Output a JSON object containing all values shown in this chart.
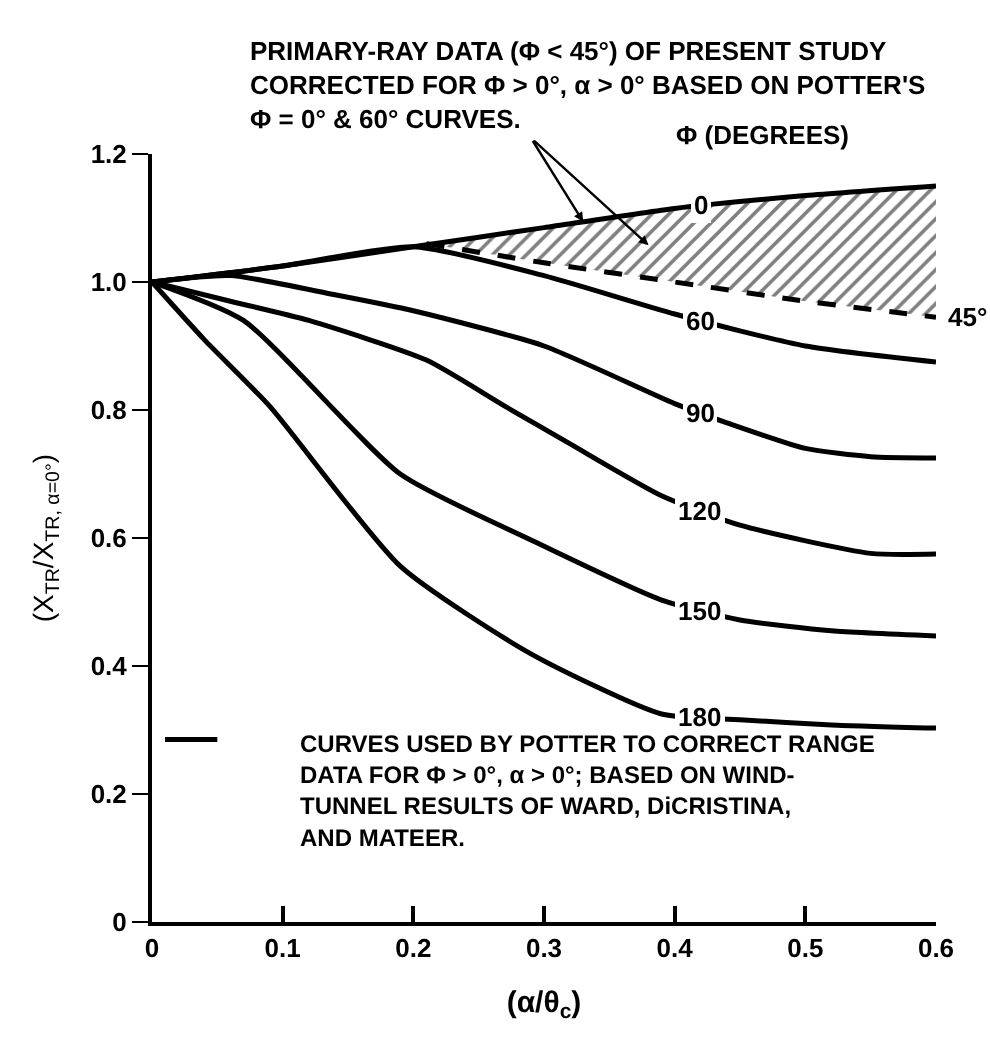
{
  "chart_data": {
    "type": "line",
    "ylabel": "(X$_{TR}$/X$_{TR, α=0°}$)",
    "xlabel": "(α/θ$_{c}$)",
    "legend_title": "Φ (DEGREES)",
    "x": [
      0,
      0.1,
      0.2,
      0.3,
      0.4,
      0.5,
      0.6
    ],
    "series": [
      {
        "name": "0",
        "color": "#000000",
        "values": [
          1.0,
          1.025,
          1.055,
          1.085,
          1.115,
          1.135,
          1.15
        ]
      },
      {
        "name": "45°",
        "color": "#000000",
        "line_style": "dashed",
        "x": [
          0.21,
          0.3,
          0.4,
          0.5,
          0.6
        ],
        "values": [
          1.06,
          1.03,
          1.0,
          0.97,
          0.945
        ],
        "lower": [
          1.06,
          1.03,
          1.0,
          0.97,
          0.945
        ],
        "upper": [
          1.06,
          1.085,
          1.115,
          1.135,
          1.15
        ]
      },
      {
        "name": "60",
        "color": "#000000",
        "values": [
          1.0,
          1.025,
          1.055,
          1.01,
          0.95,
          0.9,
          0.875
        ]
      },
      {
        "name": "90",
        "color": "#000000",
        "x": [
          0,
          0.06,
          0.14,
          0.2,
          0.3,
          0.4,
          0.44,
          0.5,
          0.55,
          0.6
        ],
        "values": [
          1.0,
          1.01,
          0.98,
          0.955,
          0.9,
          0.81,
          0.78,
          0.74,
          0.727,
          0.725
        ]
      },
      {
        "name": "120",
        "color": "#000000",
        "x": [
          0,
          0.06,
          0.12,
          0.21,
          0.27,
          0.32,
          0.39,
          0.45,
          0.55,
          0.6
        ],
        "values": [
          1.0,
          0.97,
          0.94,
          0.878,
          0.806,
          0.747,
          0.666,
          0.62,
          0.576,
          0.575
        ]
      },
      {
        "name": "150",
        "color": "#000000",
        "x": [
          0,
          0.07,
          0.19,
          0.29,
          0.39,
          0.45,
          0.52,
          0.6
        ],
        "values": [
          1.0,
          0.94,
          0.7,
          0.597,
          0.503,
          0.472,
          0.455,
          0.447
        ]
      },
      {
        "name": "180",
        "color": "#000000",
        "x": [
          0,
          0.04,
          0.09,
          0.19,
          0.29,
          0.39,
          0.45,
          0.52,
          0.6
        ],
        "values": [
          1.0,
          0.91,
          0.806,
          0.556,
          0.419,
          0.325,
          0.316,
          0.308,
          0.303
        ]
      }
    ],
    "xlim": [
      0,
      0.6
    ],
    "xticks": [
      {
        "value": 0,
        "label": "0"
      },
      0.1,
      0.2,
      0.3,
      0.4,
      0.5,
      0.6
    ],
    "ylim": [
      0,
      1.2
    ],
    "yticks": [
      {
        "value": 0,
        "label": "0"
      },
      0.2,
      0.4,
      0.6,
      0.8,
      {
        "value": 1.0,
        "label": "1.0"
      },
      1.2
    ],
    "line_style": "solid",
    "annotations": [
      {
        "text": "PRIMARY-RAY DATA (Φ < 45°) OF PRESENT STUDY\nCORRECTED FOR Φ > 0°, α > 0° BASED ON POTTER'S\nΦ = 0° & 60° CURVES.",
        "x": 0.33,
        "y": 1.094
      },
      "CURVES USED BY POTTER TO CORRECT RANGE\nDATA FOR Φ > 0°, α > 0°; BASED ON WIND-\nTUNNEL RESULTS OF WARD, DiCRISTINA,\nAND MATEER."
    ]
  }
}
